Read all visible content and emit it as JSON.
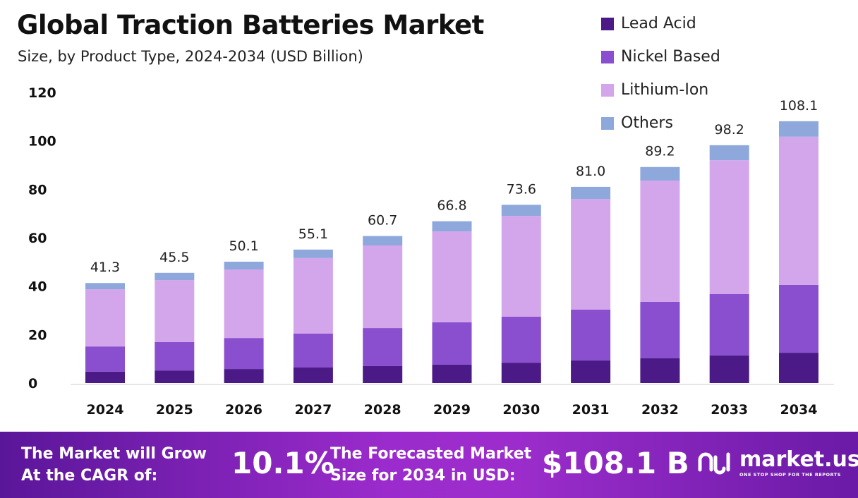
{
  "title": "Global Traction Batteries Market",
  "subtitle": "Size, by Product Type, 2024-2034 (USD Billion)",
  "chart_data": {
    "type": "bar",
    "stacked": true,
    "categories": [
      "2024",
      "2025",
      "2026",
      "2027",
      "2028",
      "2029",
      "2030",
      "2031",
      "2032",
      "2033",
      "2034"
    ],
    "series": [
      {
        "name": "Lead Acid",
        "color": "#4b1a86",
        "values": [
          4.7,
          5.2,
          5.8,
          6.4,
          7.0,
          7.6,
          8.4,
          9.3,
          10.2,
          11.4,
          12.5
        ]
      },
      {
        "name": "Nickel Based",
        "color": "#8a4fcf",
        "values": [
          10.4,
          11.7,
          12.8,
          14.0,
          15.7,
          17.5,
          19.0,
          21.0,
          23.3,
          25.3,
          28.0
        ]
      },
      {
        "name": "Lithium-Ion",
        "color": "#d3a6ec",
        "values": [
          23.6,
          25.6,
          28.3,
          31.2,
          34.1,
          37.5,
          41.6,
          45.7,
          50.1,
          55.3,
          61.2
        ]
      },
      {
        "name": "Others",
        "color": "#8fa8dc",
        "values": [
          2.6,
          3.0,
          3.2,
          3.5,
          3.9,
          4.2,
          4.6,
          5.0,
          5.6,
          6.2,
          6.4
        ]
      }
    ],
    "totals": [
      "41.3",
      "45.5",
      "50.1",
      "55.1",
      "60.7",
      "66.8",
      "73.6",
      "81.0",
      "89.2",
      "98.2",
      "108.1"
    ],
    "yticks": [
      "0",
      "20",
      "40",
      "60",
      "80",
      "100",
      "120"
    ],
    "ylim": [
      0,
      120
    ],
    "grid": false,
    "legend": "top-right"
  },
  "footer": {
    "cagr_label_1": "The Market will Grow",
    "cagr_label_2": "At the CAGR of:",
    "cagr_value": "10.1%",
    "forecast_label_1": "The Forecasted Market",
    "forecast_label_2": "Size for 2034 in USD:",
    "forecast_value": "$108.1 B",
    "logo_name": "market.us",
    "logo_tagline": "ONE STOP SHOP FOR THE REPORTS"
  }
}
